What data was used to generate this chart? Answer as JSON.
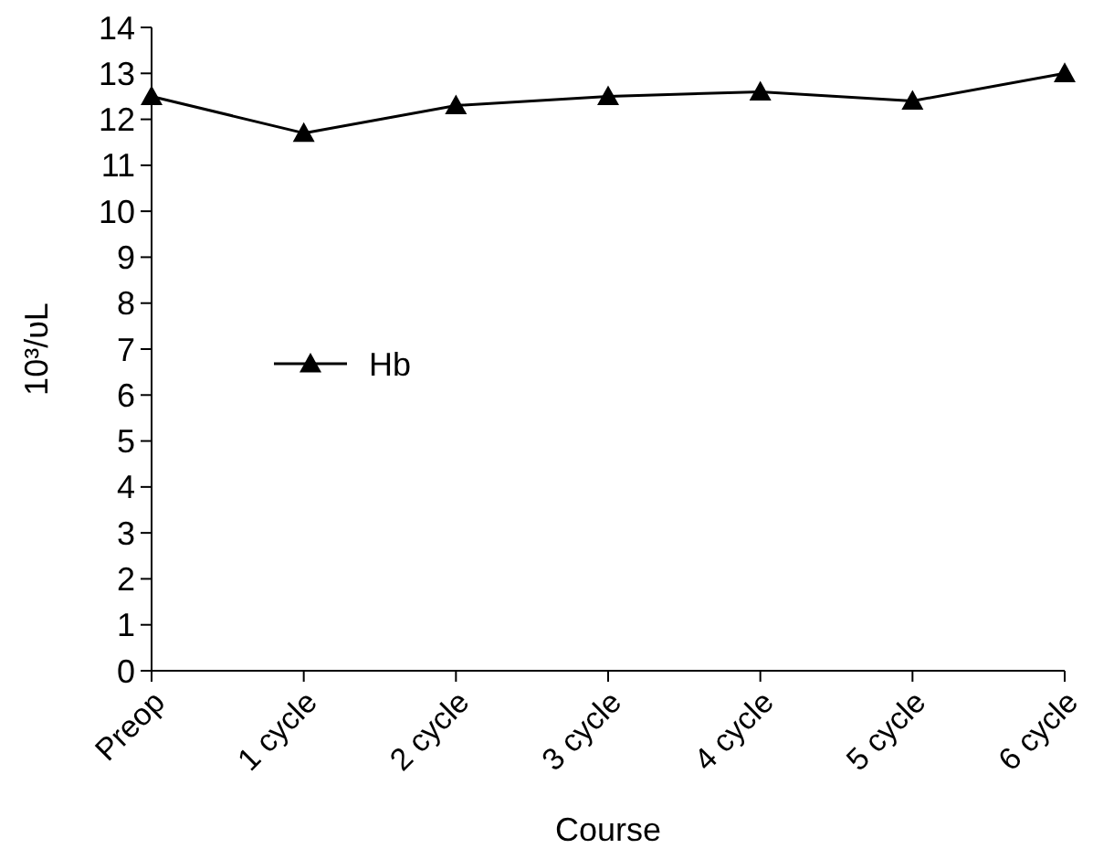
{
  "chart_data": {
    "type": "line",
    "xlabel": "Course",
    "ylabel": "10³/υL",
    "categories": [
      "Preop",
      "1 cycle",
      "2 cycle",
      "3 cycle",
      "4 cycle",
      "5 cycle",
      "6 cycle"
    ],
    "series": [
      {
        "name": "Hb",
        "color": "#000000",
        "values": [
          12.5,
          11.7,
          12.3,
          12.5,
          12.6,
          12.4,
          13.0
        ]
      }
    ],
    "ylim": [
      0,
      14
    ],
    "yticks": [
      0,
      1,
      2,
      3,
      4,
      5,
      6,
      7,
      8,
      9,
      10,
      11,
      12,
      13,
      14
    ],
    "marker": "triangle",
    "line_style": "solid",
    "legend": "left",
    "grid": false
  }
}
